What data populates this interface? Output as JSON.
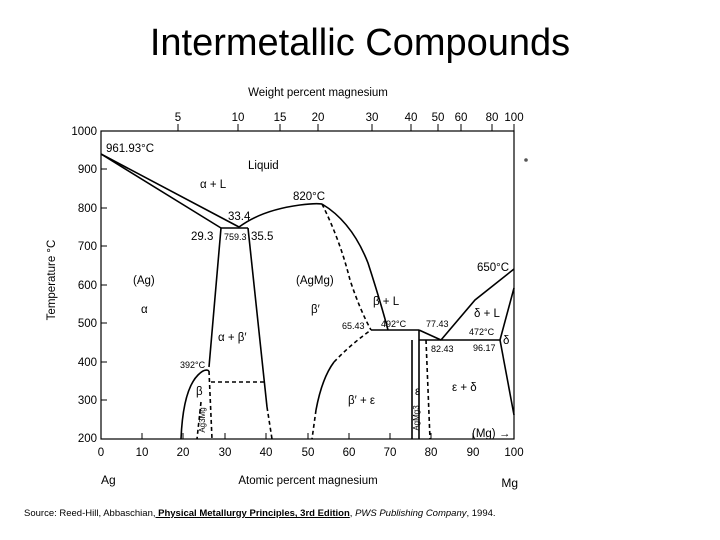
{
  "slide": {
    "title": "Intermetallic Compounds"
  },
  "diagram": {
    "type": "binary phase diagram",
    "top_axis": {
      "label": "Weight percent magnesium",
      "ticks": [
        "5",
        "10",
        "15",
        "20",
        "30",
        "40",
        "50",
        "60",
        "80",
        "100"
      ]
    },
    "bottom_axis": {
      "label": "Atomic percent magnesium",
      "ticks": [
        "0",
        "10",
        "20",
        "30",
        "40",
        "50",
        "60",
        "70",
        "80",
        "90",
        "100"
      ],
      "range": [
        0,
        100
      ]
    },
    "left_axis": {
      "label": "Temperature °C",
      "ticks": [
        "1000",
        "900",
        "800",
        "700",
        "600",
        "500",
        "400",
        "300",
        "200"
      ],
      "range": [
        200,
        1000
      ]
    },
    "end_labels": {
      "left": "Ag",
      "right": "Mg"
    },
    "phase_labels": {
      "liquid": "Liquid",
      "alpha_liquid": "α + L",
      "ag": "(Ag)",
      "alpha": "α",
      "agmg": "(AgMg)",
      "beta_prime": "β′",
      "beta_liquid": "β + L",
      "delta_liquid": "δ + L",
      "delta": "δ",
      "alpha_beta": "α + β′",
      "beta": "β",
      "beta_epsilon": "β′ + ε",
      "epsilon": "ε",
      "epsilon_delta": "ε + δ",
      "ag3mg": "Ag3Mg",
      "agmg3": "AgMg3",
      "mg_arrow": "(Mg) →"
    },
    "point_labels": {
      "ag_melting": "961.93°C",
      "agmg_max": "820°C",
      "mg_melting": "650°C",
      "eutectic1_comp": "33.4",
      "eutectic1_left": "29.3",
      "eutectic1_temp": "759.3",
      "eutectic1_right": "35.5",
      "peritectic_left": "65.43",
      "peritectic_temp": "492°C",
      "peritectic_right": "77.43",
      "eutectic2_left": "82.43",
      "eutectic2_temp": "472°C",
      "eutectic2_right": "96.17",
      "ordering_temp": "392°C"
    }
  },
  "source": {
    "prefix": "Source: Reed-Hill, Abbaschian,",
    "book": " Physical Metallurgy Principles, 3rd Edition",
    "separator": ", ",
    "publisher": "PWS Publishing Company",
    "suffix": ", 1994."
  }
}
